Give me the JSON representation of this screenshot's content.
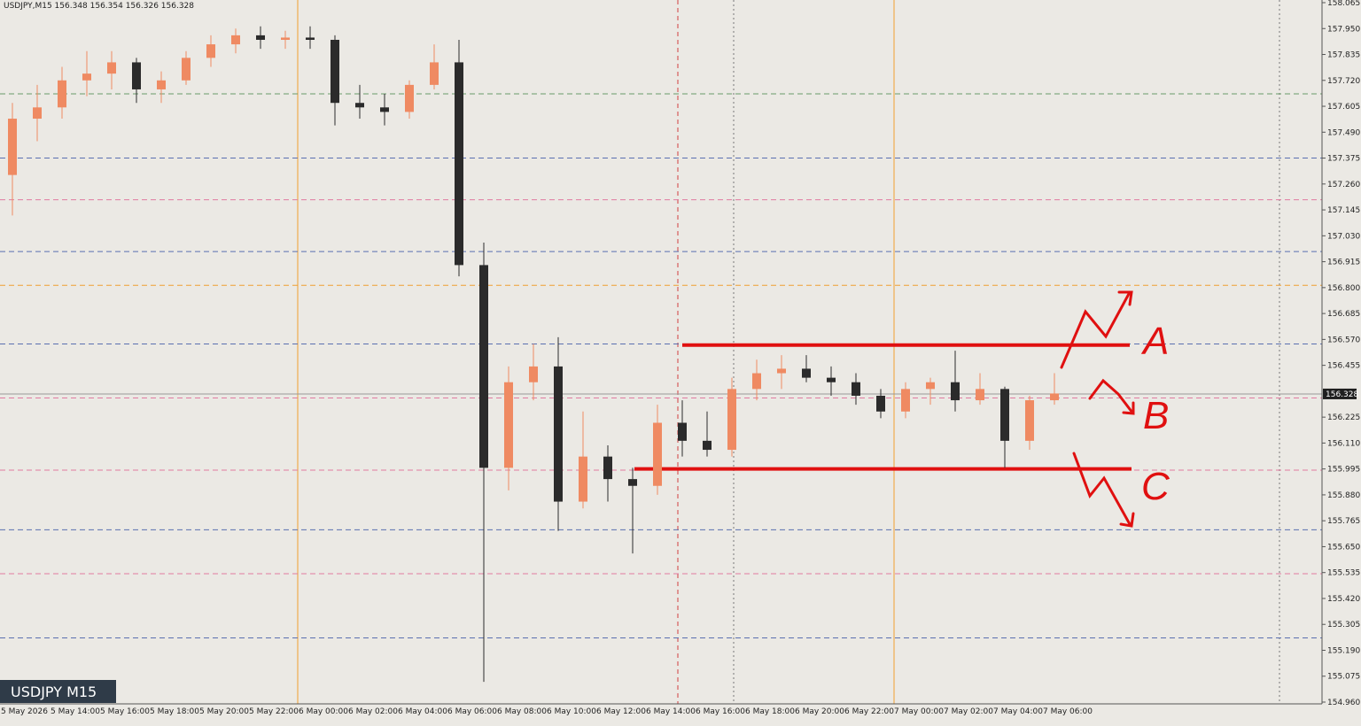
{
  "header": "USDJPY,M15  156.348 156.354 156.326 156.328",
  "chart_data": {
    "type": "candlestick",
    "symbol_label": "USDJPY M15",
    "categories": [
      "5 May 2026",
      null,
      "5 May 14:00",
      null,
      "5 May 16:00",
      null,
      "5 May 18:00",
      null,
      "5 May 20:00",
      null,
      "5 May 22:00",
      null,
      "6 May 00:00",
      null,
      "6 May 02:00",
      null,
      "6 May 04:00",
      null,
      "6 May 06:00",
      null,
      "6 May 08:00",
      null,
      "6 May 10:00",
      null,
      "6 May 12:00",
      null,
      "6 May 14:00",
      null,
      "6 May 16:00",
      null,
      "6 May 18:00",
      null,
      "6 May 20:00",
      null,
      "6 May 22:00",
      null,
      "7 May 00:00",
      null,
      "7 May 02:00",
      null,
      "7 May 04:00",
      null,
      "7 May 06:00"
    ],
    "open": [
      157.3,
      157.55,
      157.6,
      157.72,
      157.75,
      157.8,
      157.68,
      157.72,
      157.82,
      157.88,
      157.92,
      157.9,
      157.91,
      157.9,
      157.62,
      157.6,
      157.58,
      157.7,
      157.8,
      156.9,
      156.0,
      156.38,
      156.45,
      155.85,
      156.05,
      155.95,
      155.92,
      156.2,
      156.12,
      156.08,
      156.35,
      156.42,
      156.44,
      156.4,
      156.38,
      156.32,
      156.25,
      156.35,
      156.38,
      156.3,
      156.35,
      156.12,
      156.3
    ],
    "high": [
      157.62,
      157.7,
      157.78,
      157.85,
      157.85,
      157.82,
      157.76,
      157.85,
      157.92,
      157.95,
      157.96,
      157.94,
      157.96,
      157.92,
      157.7,
      157.66,
      157.72,
      157.88,
      157.9,
      157.0,
      156.45,
      156.55,
      156.58,
      156.25,
      156.1,
      156.0,
      156.28,
      156.3,
      156.25,
      156.4,
      156.48,
      156.5,
      156.5,
      156.45,
      156.42,
      156.35,
      156.38,
      156.4,
      156.52,
      156.42,
      156.36,
      156.32,
      156.42
    ],
    "low": [
      157.12,
      157.45,
      157.55,
      157.65,
      157.68,
      157.62,
      157.62,
      157.7,
      157.78,
      157.84,
      157.86,
      157.86,
      157.86,
      157.52,
      157.55,
      157.52,
      157.55,
      157.68,
      156.85,
      155.05,
      155.9,
      156.3,
      155.72,
      155.82,
      155.85,
      155.62,
      155.88,
      156.05,
      156.05,
      156.05,
      156.3,
      156.35,
      156.38,
      156.32,
      156.28,
      156.22,
      156.22,
      156.28,
      156.25,
      156.28,
      156.0,
      156.08,
      156.28
    ],
    "close": [
      157.55,
      157.6,
      157.72,
      157.75,
      157.8,
      157.68,
      157.72,
      157.82,
      157.88,
      157.92,
      157.9,
      157.91,
      157.9,
      157.62,
      157.6,
      157.58,
      157.7,
      157.8,
      156.9,
      156.0,
      156.38,
      156.45,
      155.85,
      156.05,
      155.95,
      155.92,
      156.2,
      156.12,
      156.08,
      156.35,
      156.42,
      156.44,
      156.4,
      156.38,
      156.32,
      156.25,
      156.35,
      156.38,
      156.3,
      156.35,
      156.12,
      156.3,
      156.33
    ],
    "bull_color": "#ef8a62",
    "bear_color": "#2b2b2b",
    "ylim": [
      154.96,
      158.065
    ],
    "yticks": [
      158.065,
      {
        "value": 157.95,
        "label": "157.950"
      },
      157.835,
      {
        "value": 157.72,
        "label": "157.720"
      },
      157.605,
      {
        "value": 157.49,
        "label": "157.490"
      },
      157.375,
      {
        "value": 157.26,
        "label": "157.260"
      },
      157.145,
      {
        "value": 157.03,
        "label": "157.030"
      },
      156.915,
      {
        "value": 156.8,
        "label": "156.800"
      },
      156.685,
      {
        "value": 156.57,
        "label": "156.570"
      },
      156.455,
      156.225,
      {
        "value": 156.11,
        "label": "156.110"
      },
      155.995,
      {
        "value": 155.88,
        "label": "155.880"
      },
      155.765,
      {
        "value": 155.65,
        "label": "155.650"
      },
      155.535,
      {
        "value": 155.42,
        "label": "155.420"
      },
      155.305,
      {
        "value": 155.19,
        "label": "155.190"
      },
      155.075,
      {
        "value": 154.96,
        "label": "154.960"
      }
    ],
    "current_price": 156.328,
    "hlines": [
      {
        "value": 157.66,
        "color": "#6a9a6a"
      },
      {
        "value": 157.375,
        "color": "#5a6fb0"
      },
      {
        "value": 157.19,
        "color": "#e07aa0"
      },
      {
        "value": 156.96,
        "color": "#5a6fb0"
      },
      {
        "value": 156.81,
        "color": "#f0a030"
      },
      {
        "value": 156.55,
        "color": "#5a6fb0"
      },
      {
        "value": 156.31,
        "color": "#e07aa0"
      },
      {
        "value": 155.99,
        "color": "#e07aa0"
      },
      {
        "value": 155.725,
        "color": "#5a6fb0"
      },
      {
        "value": 155.53,
        "color": "#e07aa0"
      },
      {
        "value": 155.245,
        "color": "#5a6fb0"
      }
    ],
    "levels": [
      156.545,
      155.995
    ],
    "level_color": "#e01010",
    "annotations": [
      "A",
      "B",
      "C"
    ]
  }
}
